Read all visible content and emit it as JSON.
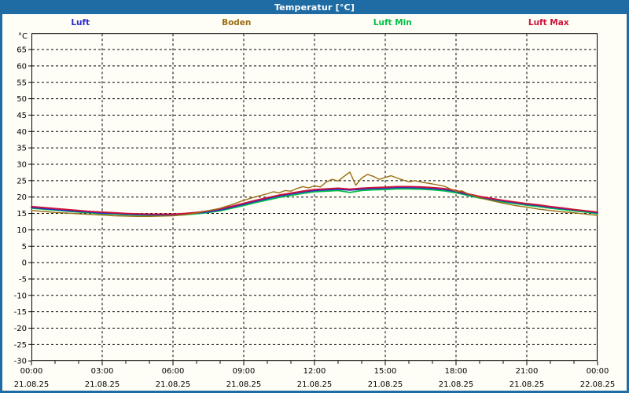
{
  "window": {
    "title": "Temperatur [°C]"
  },
  "colors": {
    "titlebar": "#1F6CA4",
    "border": "#1F6CA4",
    "background": "#FFFEF6",
    "grid": "#000000",
    "axis": "#000000"
  },
  "legend": [
    {
      "label": "Luft",
      "color": "#2B2BCC"
    },
    {
      "label": "Boden",
      "color": "#9A6E14"
    },
    {
      "label": "Luft Min",
      "color": "#00C046"
    },
    {
      "label": "Luft Max",
      "color": "#CC1238"
    }
  ],
  "chart_data": {
    "type": "line",
    "title": "Temperatur [°C]",
    "unit_label": "°C",
    "ylabel": "°C",
    "ylim": [
      -30,
      70
    ],
    "ytick_step": 5,
    "ytick_max_label": 65,
    "xlim": [
      0,
      24
    ],
    "major_tick_hours": 3,
    "minor_tick_hours": 1,
    "grid": "dashed",
    "legend_position": "top",
    "xticks": [
      {
        "time": "00:00",
        "date": "21.08.25"
      },
      {
        "time": "03:00",
        "date": "21.08.25"
      },
      {
        "time": "06:00",
        "date": "21.08.25"
      },
      {
        "time": "09:00",
        "date": "21.08.25"
      },
      {
        "time": "12:00",
        "date": "21.08.25"
      },
      {
        "time": "15:00",
        "date": "21.08.25"
      },
      {
        "time": "18:00",
        "date": "21.08.25"
      },
      {
        "time": "21:00",
        "date": "21.08.25"
      },
      {
        "time": "00:00",
        "date": "22.08.25"
      }
    ],
    "series": [
      {
        "name": "Luft",
        "color": "#2B2BCC",
        "width": 1.8,
        "z": 2,
        "x": [
          0,
          0.5,
          1,
          1.5,
          2,
          2.5,
          3,
          3.5,
          4,
          4.5,
          5,
          5.5,
          6,
          6.5,
          7,
          7.5,
          8,
          8.5,
          9,
          9.5,
          10,
          10.5,
          11,
          11.5,
          12,
          12.5,
          13,
          13.5,
          14,
          14.5,
          15,
          15.5,
          16,
          16.5,
          17,
          17.5,
          18,
          18.5,
          19,
          19.5,
          20,
          20.5,
          21,
          21.5,
          22,
          22.5,
          23,
          23.5,
          24
        ],
        "values": [
          16.8,
          16.5,
          16.2,
          15.9,
          15.6,
          15.4,
          15.1,
          15.0,
          14.8,
          14.7,
          14.6,
          14.6,
          14.6,
          14.8,
          15.1,
          15.5,
          16.1,
          16.9,
          17.8,
          18.7,
          19.5,
          20.3,
          20.9,
          21.5,
          22.0,
          22.2,
          22.4,
          22.1,
          22.4,
          22.6,
          22.7,
          22.9,
          22.9,
          22.8,
          22.6,
          22.3,
          21.7,
          20.8,
          20.0,
          19.4,
          18.8,
          18.3,
          17.8,
          17.4,
          16.9,
          16.5,
          16.1,
          15.7,
          15.2
        ]
      },
      {
        "name": "Boden",
        "color": "#9A6E14",
        "width": 1.4,
        "z": 4,
        "x": [
          0,
          0.5,
          1,
          1.5,
          2,
          2.5,
          3,
          3.5,
          4,
          4.5,
          5,
          5.5,
          6,
          6.5,
          7,
          7.5,
          8,
          8.5,
          9,
          9.5,
          10,
          10.25,
          10.5,
          10.75,
          11,
          11.25,
          11.5,
          11.75,
          12,
          12.25,
          12.5,
          12.75,
          13,
          13.25,
          13.5,
          13.75,
          14,
          14.25,
          14.5,
          14.75,
          15,
          15.25,
          15.5,
          15.75,
          16,
          16.25,
          16.5,
          16.75,
          17,
          17.5,
          18,
          18.25,
          18.5,
          19,
          19.5,
          20,
          20.5,
          21,
          21.5,
          22,
          22.5,
          23,
          23.5,
          24
        ],
        "values": [
          15.9,
          15.6,
          15.3,
          15.1,
          14.9,
          14.7,
          14.5,
          14.3,
          14.2,
          14.1,
          14.1,
          14.2,
          14.3,
          14.6,
          15.1,
          15.8,
          16.6,
          17.7,
          19.0,
          20.1,
          21.0,
          21.6,
          21.3,
          22.0,
          21.8,
          22.6,
          23.2,
          22.8,
          23.4,
          23.1,
          24.6,
          25.4,
          24.9,
          26.3,
          27.6,
          23.6,
          25.8,
          26.9,
          26.3,
          25.4,
          26.0,
          26.5,
          25.8,
          25.2,
          24.6,
          25.0,
          24.6,
          24.3,
          24.0,
          23.3,
          21.7,
          21.9,
          21.0,
          19.8,
          18.9,
          18.1,
          17.4,
          16.9,
          16.3,
          15.9,
          15.5,
          15.2,
          14.8,
          14.4
        ]
      },
      {
        "name": "Luft Min",
        "color": "#00C046",
        "width": 1.8,
        "z": 1,
        "x": [
          0,
          0.5,
          1,
          1.5,
          2,
          2.5,
          3,
          3.5,
          4,
          4.5,
          5,
          5.5,
          6,
          6.5,
          7,
          7.5,
          8,
          8.5,
          9,
          9.5,
          10,
          10.5,
          11,
          11.5,
          12,
          12.5,
          13,
          13.5,
          14,
          14.5,
          15,
          15.5,
          16,
          16.5,
          17,
          17.5,
          18,
          18.5,
          19,
          19.5,
          20,
          20.5,
          21,
          21.5,
          22,
          22.5,
          23,
          23.5,
          24
        ],
        "values": [
          16.6,
          16.3,
          16.0,
          15.7,
          15.4,
          15.2,
          14.9,
          14.8,
          14.6,
          14.5,
          14.4,
          14.4,
          14.4,
          14.6,
          14.9,
          15.3,
          15.8,
          16.6,
          17.4,
          18.3,
          19.1,
          19.9,
          20.5,
          21.1,
          21.6,
          21.8,
          22.0,
          21.4,
          22.0,
          22.2,
          22.3,
          22.5,
          22.5,
          22.4,
          22.2,
          21.9,
          21.3,
          20.5,
          19.7,
          19.1,
          18.5,
          18.0,
          17.5,
          17.1,
          16.6,
          16.2,
          15.8,
          15.4,
          14.9
        ]
      },
      {
        "name": "Luft Max",
        "color": "#CC1238",
        "width": 1.8,
        "z": 3,
        "x": [
          0,
          0.5,
          1,
          1.5,
          2,
          2.5,
          3,
          3.5,
          4,
          4.5,
          5,
          5.5,
          6,
          6.5,
          7,
          7.5,
          8,
          8.5,
          9,
          9.5,
          10,
          10.5,
          11,
          11.5,
          12,
          12.5,
          13,
          13.5,
          14,
          14.5,
          15,
          15.5,
          16,
          16.5,
          17,
          17.5,
          18,
          18.5,
          19,
          19.5,
          20,
          20.5,
          21,
          21.5,
          22,
          22.5,
          23,
          23.5,
          24
        ],
        "values": [
          17.1,
          16.8,
          16.5,
          16.2,
          15.9,
          15.6,
          15.4,
          15.2,
          15.0,
          14.9,
          14.8,
          14.8,
          14.8,
          15.0,
          15.3,
          15.8,
          16.4,
          17.2,
          18.1,
          19.0,
          19.8,
          20.6,
          21.2,
          21.8,
          22.3,
          22.5,
          22.7,
          22.4,
          22.7,
          22.9,
          23.0,
          23.2,
          23.2,
          23.1,
          22.9,
          22.6,
          22.0,
          21.0,
          20.2,
          19.6,
          19.0,
          18.5,
          18.0,
          17.6,
          17.1,
          16.7,
          16.2,
          15.8,
          15.4
        ]
      }
    ]
  }
}
